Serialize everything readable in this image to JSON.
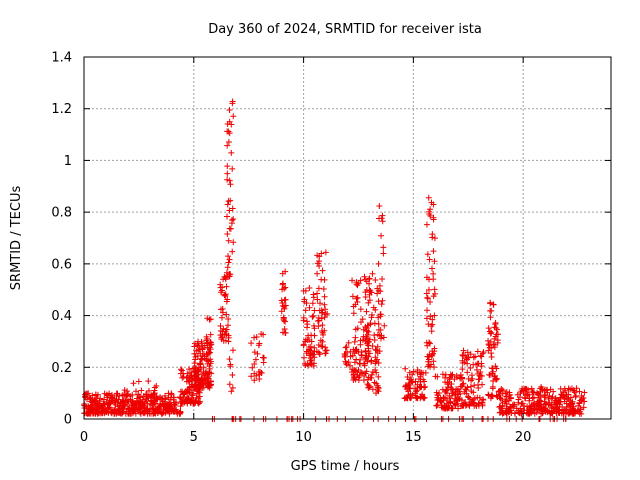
{
  "chart_data": {
    "type": "scatter",
    "title": "Day 360 of 2024, SRMTID for receiver ista",
    "xlabel": "GPS time / hours",
    "ylabel": "SRMTID / TECUs",
    "xlim": [
      0,
      24
    ],
    "ylim": [
      0,
      1.4
    ],
    "xticks": [
      0,
      5,
      10,
      15,
      20
    ],
    "yticks": [
      0,
      0.2,
      0.4,
      0.6,
      0.8,
      1.0,
      1.2,
      1.4
    ],
    "xtick_labels": [
      "0",
      "5",
      "10",
      "15",
      "20"
    ],
    "ytick_labels": [
      "0",
      "0.2",
      "0.4",
      "0.6",
      "0.8",
      "1",
      "1.2",
      "1.4"
    ],
    "grid": true,
    "marker": "plus",
    "series": [
      {
        "name": "SRMTID",
        "color": "#ee0000",
        "segments": [
          {
            "x0": 0.0,
            "x1": 4.4,
            "lo": 0.02,
            "hi": 0.1,
            "n": 420
          },
          {
            "x0": 1.8,
            "x1": 3.4,
            "lo": 0.05,
            "hi": 0.15,
            "n": 25
          },
          {
            "x0": 4.4,
            "x1": 5.3,
            "lo": 0.06,
            "hi": 0.2,
            "n": 120
          },
          {
            "x0": 5.0,
            "x1": 5.8,
            "lo": 0.12,
            "hi": 0.3,
            "n": 110
          },
          {
            "x0": 5.5,
            "x1": 5.8,
            "lo": 0.25,
            "hi": 0.4,
            "n": 20
          },
          {
            "x0": 6.2,
            "x1": 6.6,
            "lo": 0.3,
            "hi": 0.55,
            "n": 40
          },
          {
            "x0": 6.5,
            "x1": 6.8,
            "lo": 0.55,
            "hi": 1.24,
            "n": 45
          },
          {
            "x0": 6.6,
            "x1": 6.8,
            "lo": 0.1,
            "hi": 0.3,
            "n": 8
          },
          {
            "x0": 7.6,
            "x1": 8.2,
            "lo": 0.15,
            "hi": 0.34,
            "n": 25
          },
          {
            "x0": 9.0,
            "x1": 9.2,
            "lo": 0.33,
            "hi": 0.58,
            "n": 25
          },
          {
            "x0": 10.0,
            "x1": 10.5,
            "lo": 0.2,
            "hi": 0.52,
            "n": 60
          },
          {
            "x0": 10.6,
            "x1": 11.1,
            "lo": 0.25,
            "hi": 0.65,
            "n": 50
          },
          {
            "x0": 11.8,
            "x1": 12.2,
            "lo": 0.18,
            "hi": 0.32,
            "n": 15
          },
          {
            "x0": 12.2,
            "x1": 13.0,
            "lo": 0.15,
            "hi": 0.55,
            "n": 90
          },
          {
            "x0": 12.8,
            "x1": 13.5,
            "lo": 0.1,
            "hi": 0.57,
            "n": 80
          },
          {
            "x0": 13.4,
            "x1": 13.7,
            "lo": 0.3,
            "hi": 0.84,
            "n": 20
          },
          {
            "x0": 14.6,
            "x1": 15.6,
            "lo": 0.08,
            "hi": 0.2,
            "n": 70
          },
          {
            "x0": 15.6,
            "x1": 16.0,
            "lo": 0.2,
            "hi": 0.86,
            "n": 60
          },
          {
            "x0": 16.0,
            "x1": 17.2,
            "lo": 0.04,
            "hi": 0.18,
            "n": 100
          },
          {
            "x0": 17.2,
            "x1": 18.2,
            "lo": 0.05,
            "hi": 0.27,
            "n": 100
          },
          {
            "x0": 18.4,
            "x1": 18.9,
            "lo": 0.08,
            "hi": 0.45,
            "n": 60
          },
          {
            "x0": 18.9,
            "x1": 22.8,
            "lo": 0.02,
            "hi": 0.12,
            "n": 320
          },
          {
            "x0": 20.5,
            "x1": 21.0,
            "lo": 0.04,
            "hi": 0.16,
            "n": 15
          }
        ],
        "zero_band": {
          "x0": 5.8,
          "x1": 22.2,
          "y": 0.0,
          "n": 60
        }
      }
    ]
  }
}
